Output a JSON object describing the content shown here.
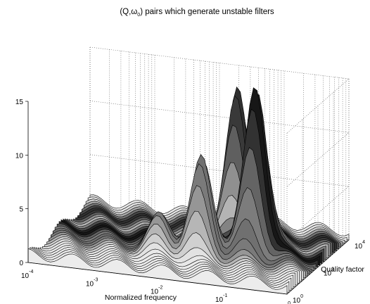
{
  "chart_data": {
    "type": "surface3d",
    "title_parts": [
      "(Q,",
      "ω",
      "0",
      ") pairs which generate unstable filters"
    ],
    "xlabel": "Normalized frequency",
    "ylabel": "Quality factor",
    "zlabel": "",
    "x_scale": "log",
    "y_scale": "log",
    "xlim": [
      0.0001,
      1
    ],
    "ylim": [
      1,
      10000
    ],
    "zlim": [
      0,
      15
    ],
    "x_ticks": [
      {
        "base": "10",
        "exp": "-4"
      },
      {
        "base": "10",
        "exp": "-3"
      },
      {
        "base": "10",
        "exp": "-2"
      },
      {
        "base": "10",
        "exp": "-1"
      },
      {
        "base": "10",
        "exp": "0"
      }
    ],
    "y_ticks": [
      {
        "base": "10",
        "exp": "0"
      },
      {
        "base": "10",
        "exp": "2"
      },
      {
        "base": "10",
        "exp": "4"
      }
    ],
    "z_ticks": [
      "0",
      "5",
      "10",
      "15"
    ],
    "grid": true,
    "colormap": "gray",
    "peaks": [
      {
        "x": 0.005,
        "y": 30,
        "z": 3.0
      },
      {
        "x": 0.02,
        "y": 40,
        "z": 8.5
      },
      {
        "x": 0.1,
        "y": 150,
        "z": 15.5
      },
      {
        "x": 0.03,
        "y": 1500,
        "z": 13.0
      }
    ]
  }
}
